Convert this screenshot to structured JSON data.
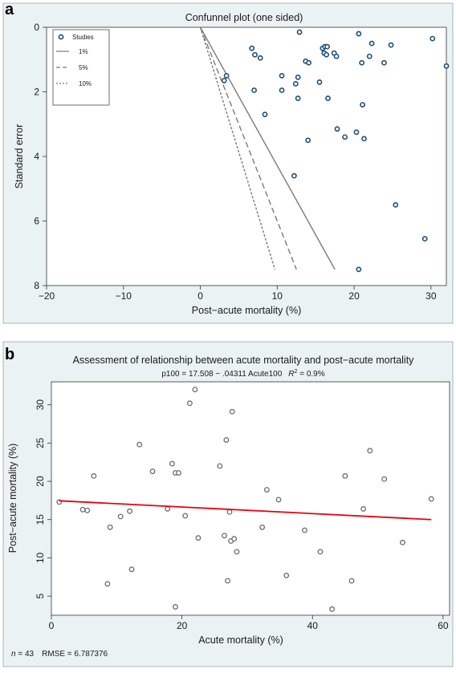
{
  "chart_data": [
    {
      "panel": "a",
      "type": "scatter",
      "title": "Confunnel plot (one sided)",
      "xlabel": "Post−acute mortality (%)",
      "ylabel": "Standard error",
      "xlim": [
        -20,
        32
      ],
      "ylim": [
        8,
        0
      ],
      "y_axis_reversed": true,
      "x_ticks": [
        "−20",
        "−10",
        "0",
        "10",
        "20",
        "30"
      ],
      "x_tick_values": [
        -20,
        -10,
        0,
        10,
        20,
        30
      ],
      "y_ticks": [
        "0",
        "2",
        "4",
        "6",
        "8"
      ],
      "y_tick_values": [
        0,
        2,
        4,
        6,
        8
      ],
      "legend": {
        "position": "top-left",
        "entries": [
          {
            "label": "Studies",
            "style": "marker"
          },
          {
            "label": "1%",
            "style": "solid"
          },
          {
            "label": "5%",
            "style": "dashed"
          },
          {
            "label": "10%",
            "style": "dotted"
          }
        ]
      },
      "contours": [
        {
          "name": "1%",
          "style": "solid",
          "points": [
            [
              0,
              0
            ],
            [
              17.5,
              7.5
            ]
          ]
        },
        {
          "name": "5%",
          "style": "dashed",
          "points": [
            [
              0,
              0
            ],
            [
              12.5,
              7.5
            ]
          ]
        },
        {
          "name": "10%",
          "style": "dotted",
          "points": [
            [
              0,
              0
            ],
            [
              9.7,
              7.5
            ]
          ]
        }
      ],
      "series": [
        {
          "points": [
            [
              12.9,
              0.15
            ],
            [
              20.6,
              0.2
            ],
            [
              30.2,
              0.35
            ],
            [
              32.0,
              1.2
            ],
            [
              22.3,
              0.5
            ],
            [
              24.8,
              0.55
            ],
            [
              6.7,
              0.65
            ],
            [
              7.1,
              0.85
            ],
            [
              7.8,
              0.95
            ],
            [
              15.9,
              0.65
            ],
            [
              16.2,
              0.6
            ],
            [
              16.5,
              0.6
            ],
            [
              16.1,
              0.8
            ],
            [
              16.4,
              0.85
            ],
            [
              17.4,
              0.8
            ],
            [
              17.7,
              0.9
            ],
            [
              22.0,
              0.9
            ],
            [
              23.9,
              1.1
            ],
            [
              21.0,
              1.1
            ],
            [
              13.7,
              1.05
            ],
            [
              14.1,
              1.1
            ],
            [
              3.4,
              1.5
            ],
            [
              3.1,
              1.65
            ],
            [
              7.0,
              1.95
            ],
            [
              10.6,
              1.5
            ],
            [
              12.4,
              1.75
            ],
            [
              12.7,
              1.55
            ],
            [
              15.5,
              1.7
            ],
            [
              10.6,
              1.95
            ],
            [
              12.7,
              2.2
            ],
            [
              16.6,
              2.2
            ],
            [
              8.4,
              2.7
            ],
            [
              21.1,
              2.4
            ],
            [
              17.8,
              3.15
            ],
            [
              18.8,
              3.4
            ],
            [
              20.3,
              3.25
            ],
            [
              21.3,
              3.45
            ],
            [
              14.0,
              3.5
            ],
            [
              12.2,
              4.6
            ],
            [
              25.4,
              5.5
            ],
            [
              29.2,
              6.55
            ],
            [
              20.6,
              7.5
            ]
          ]
        }
      ]
    },
    {
      "panel": "b",
      "type": "scatter",
      "title": "Assessment of relationship between acute mortality and post−acute mortality",
      "subtitle": "p100 = 17.508 − .04311 Acute100",
      "r2_label": "R",
      "r2_value": "2",
      "r2_tail": " = 0.9%",
      "xlabel": "Acute mortality (%)",
      "ylabel": "Post−acute mortality (%)",
      "xlim": [
        0,
        61
      ],
      "ylim": [
        2.5,
        33
      ],
      "x_ticks": [
        "0",
        "20",
        "40",
        "60"
      ],
      "x_tick_values": [
        0,
        20,
        40,
        60
      ],
      "y_ticks": [
        "5",
        "10",
        "15",
        "20",
        "25",
        "30"
      ],
      "y_tick_values": [
        5,
        10,
        15,
        20,
        25,
        30
      ],
      "footnote_n_label": "n",
      "footnote_n_value": " = 43",
      "footnote_rmse": "RMSE =  6.787376",
      "colors": {
        "fit_line": "#e8000b",
        "markers": "#6e6e6e"
      },
      "fit_line": {
        "intercept": 17.508,
        "slope": -0.04311,
        "x_range": [
          1.2,
          58.2
        ]
      },
      "series": [
        {
          "points": [
            [
              1.2,
              17.3
            ],
            [
              4.8,
              16.3
            ],
            [
              5.5,
              16.2
            ],
            [
              6.5,
              20.7
            ],
            [
              8.6,
              6.6
            ],
            [
              9.0,
              14.0
            ],
            [
              10.6,
              15.4
            ],
            [
              12.0,
              16.1
            ],
            [
              12.3,
              8.5
            ],
            [
              13.5,
              24.8
            ],
            [
              15.5,
              21.3
            ],
            [
              17.8,
              16.4
            ],
            [
              18.5,
              22.3
            ],
            [
              19.0,
              21.1
            ],
            [
              19.0,
              3.6
            ],
            [
              19.5,
              21.1
            ],
            [
              20.5,
              15.5
            ],
            [
              21.2,
              30.2
            ],
            [
              22.0,
              32.0
            ],
            [
              22.5,
              12.6
            ],
            [
              25.8,
              22.0
            ],
            [
              26.5,
              12.9
            ],
            [
              26.8,
              25.4
            ],
            [
              27.0,
              7.0
            ],
            [
              27.3,
              16.0
            ],
            [
              27.5,
              12.2
            ],
            [
              27.7,
              29.1
            ],
            [
              28.0,
              12.5
            ],
            [
              28.4,
              10.8
            ],
            [
              32.3,
              14.0
            ],
            [
              33.0,
              18.9
            ],
            [
              34.8,
              17.6
            ],
            [
              36.0,
              7.7
            ],
            [
              38.8,
              13.6
            ],
            [
              41.2,
              10.8
            ],
            [
              43.0,
              3.3
            ],
            [
              45.0,
              20.7
            ],
            [
              46.0,
              7.0
            ],
            [
              47.8,
              16.4
            ],
            [
              48.8,
              24.0
            ],
            [
              51.0,
              20.3
            ],
            [
              53.8,
              12.0
            ],
            [
              58.2,
              17.7
            ]
          ]
        }
      ]
    }
  ]
}
